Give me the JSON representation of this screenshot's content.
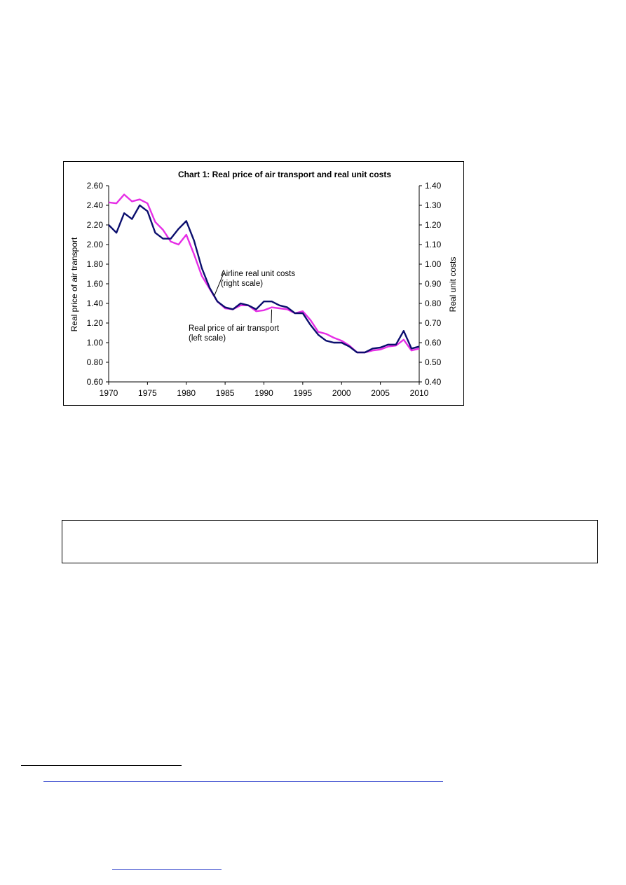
{
  "colors": {
    "unit_costs": "#0b0e6e",
    "price": "#e62ee6",
    "frame": "#000000"
  },
  "chart_data": {
    "type": "line",
    "title": "Chart 1: Real price of air transport and real unit costs",
    "ylabel_left": "Real price of air transport",
    "ylabel_right": "Real unit costs",
    "ylim_left": [
      0.6,
      2.6
    ],
    "ylim_right": [
      0.4,
      1.4
    ],
    "yticks_left": [
      "2.60",
      "2.40",
      "2.20",
      "2.00",
      "1.80",
      "1.60",
      "1.40",
      "1.20",
      "1.00",
      "0.80",
      "0.60"
    ],
    "yticks_right": [
      "1.40",
      "1.30",
      "1.20",
      "1.10",
      "1.00",
      "0.90",
      "0.80",
      "0.70",
      "0.60",
      "0.50",
      "0.40"
    ],
    "xticks": [
      "1970",
      "1975",
      "1980",
      "1985",
      "1990",
      "1995",
      "2000",
      "2005",
      "2010"
    ],
    "grid": false,
    "x": [
      1970,
      1971,
      1972,
      1973,
      1974,
      1975,
      1976,
      1977,
      1978,
      1979,
      1980,
      1981,
      1982,
      1983,
      1984,
      1985,
      1986,
      1987,
      1988,
      1989,
      1990,
      1991,
      1992,
      1993,
      1994,
      1995,
      1996,
      1997,
      1998,
      1999,
      2000,
      2001,
      2002,
      2003,
      2004,
      2005,
      2006,
      2007,
      2008,
      2009,
      2010
    ],
    "series": [
      {
        "key": "unit_costs",
        "axis": "right",
        "values": [
          1.2,
          1.16,
          1.26,
          1.23,
          1.3,
          1.27,
          1.16,
          1.13,
          1.13,
          1.18,
          1.22,
          1.12,
          0.98,
          0.88,
          0.81,
          0.78,
          0.77,
          0.8,
          0.79,
          0.77,
          0.81,
          0.81,
          0.79,
          0.78,
          0.75,
          0.75,
          0.69,
          0.64,
          0.61,
          0.6,
          0.6,
          0.58,
          0.55,
          0.55,
          0.57,
          0.575,
          0.59,
          0.59,
          0.66,
          0.57,
          0.58
        ]
      },
      {
        "key": "price",
        "axis": "left",
        "values": [
          2.43,
          2.42,
          2.51,
          2.44,
          2.46,
          2.42,
          2.23,
          2.15,
          2.03,
          2.0,
          2.1,
          1.9,
          1.68,
          1.55,
          1.42,
          1.35,
          1.34,
          1.38,
          1.38,
          1.32,
          1.33,
          1.36,
          1.35,
          1.34,
          1.3,
          1.32,
          1.23,
          1.11,
          1.09,
          1.05,
          1.02,
          0.97,
          0.9,
          0.9,
          0.92,
          0.93,
          0.96,
          0.97,
          1.03,
          0.92,
          0.94
        ]
      }
    ],
    "annotations": [
      {
        "lines": [
          "Airline real unit costs",
          "(right scale)"
        ],
        "target_x": 1983.6,
        "target_series": "unit_costs"
      },
      {
        "lines": [
          "Real price of air transport",
          "(left scale)"
        ],
        "target_x": 1991,
        "target_series": "price"
      }
    ]
  }
}
